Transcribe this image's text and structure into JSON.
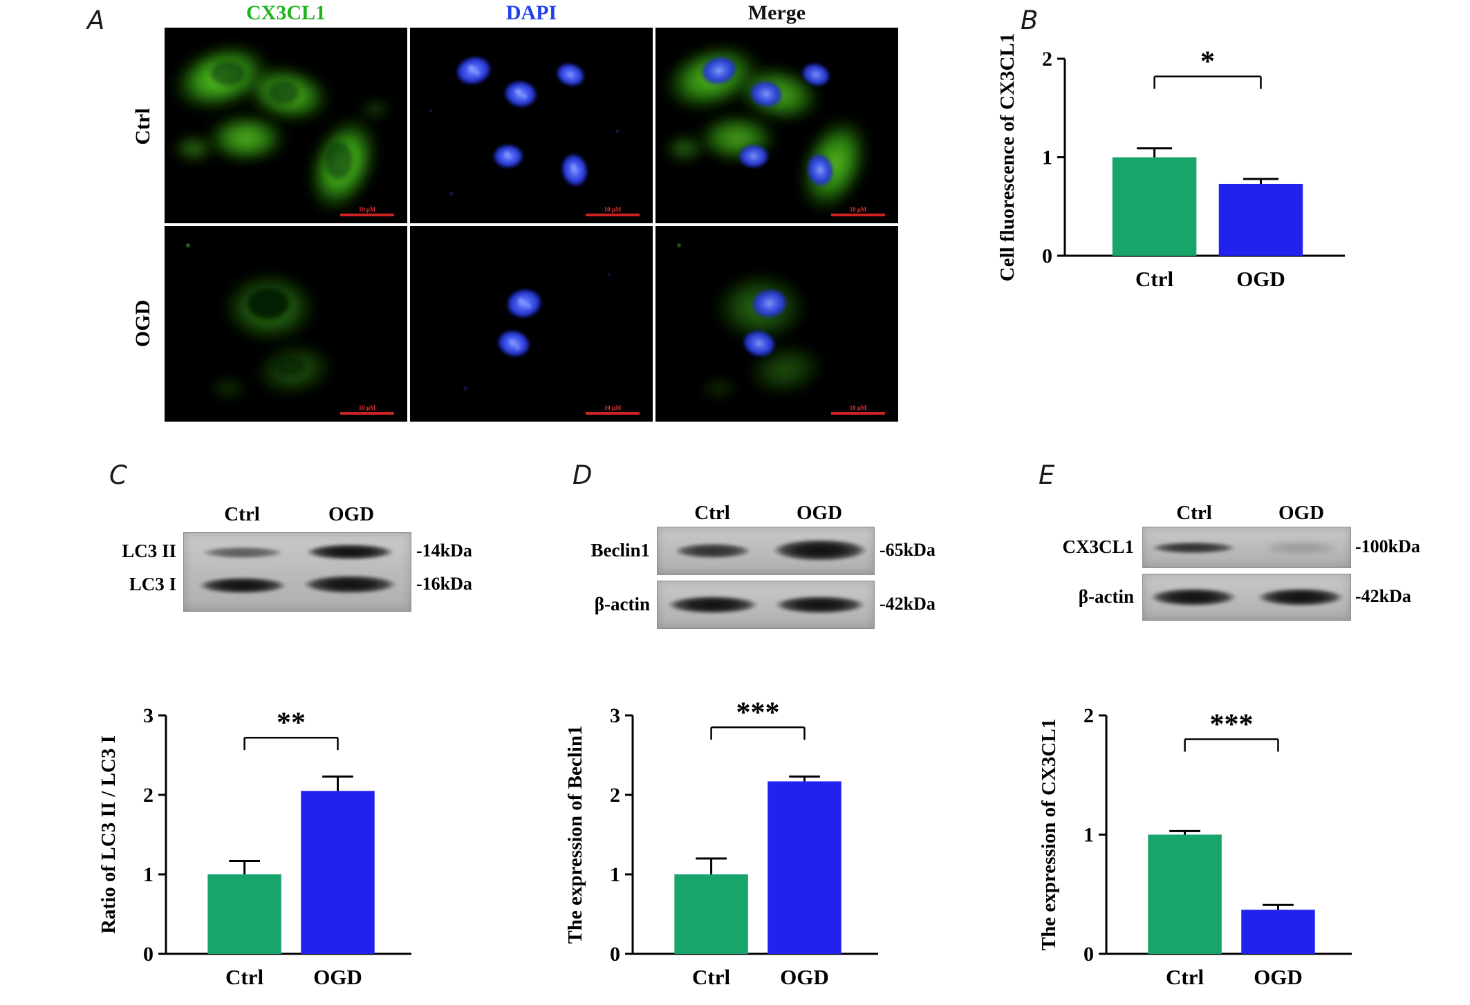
{
  "panelA": {
    "label": "A",
    "column_headers": [
      {
        "label": "CX3CL1",
        "color": "#1db41d"
      },
      {
        "label": "DAPI",
        "color": "#2240f0"
      },
      {
        "label": "Merge",
        "color": "#111111"
      }
    ],
    "row_labels": [
      "Ctrl",
      "OGD"
    ],
    "scalebar_label": "10 μM"
  },
  "panelB": {
    "label": "B"
  },
  "panelC": {
    "label": "C",
    "blot": {
      "lane_headers": [
        "Ctrl",
        "OGD"
      ],
      "rows": [
        {
          "protein": "LC3 II",
          "size": "-14kDa"
        },
        {
          "protein": "LC3 I",
          "size": "-16kDa"
        }
      ]
    }
  },
  "panelD": {
    "label": "D",
    "blot": {
      "lane_headers": [
        "Ctrl",
        "OGD"
      ],
      "rows": [
        {
          "protein": "Beclin1",
          "size": "-65kDa"
        },
        {
          "protein": "β-actin",
          "size": "-42kDa"
        }
      ]
    }
  },
  "panelE": {
    "label": "E",
    "blot": {
      "lane_headers": [
        "Ctrl",
        "OGD"
      ],
      "rows": [
        {
          "protein": "CX3CL1",
          "size": "-100kDa"
        },
        {
          "protein": "β-actin",
          "size": "-42kDa"
        }
      ]
    }
  },
  "chart_data": [
    {
      "id": "B",
      "type": "bar",
      "categories": [
        "Ctrl",
        "OGD"
      ],
      "values": [
        1.0,
        0.73
      ],
      "errors": [
        0.09,
        0.05
      ],
      "bar_colors": [
        "#18a56b",
        "#2222ee"
      ],
      "title": "",
      "xlabel": "",
      "ylabel": "Cell fluorescence of CX3CL1",
      "ylim": [
        0,
        2
      ],
      "yticks": [
        0,
        1,
        2
      ],
      "significance": "*",
      "sig_y": 1.82,
      "legend": "none",
      "grid": false
    },
    {
      "id": "C",
      "type": "bar",
      "categories": [
        "Ctrl",
        "OGD"
      ],
      "values": [
        1.0,
        2.05
      ],
      "errors": [
        0.17,
        0.18
      ],
      "bar_colors": [
        "#18a56b",
        "#2222ee"
      ],
      "title": "",
      "xlabel": "",
      "ylabel": "Ratio of LC3 II / LC3 I",
      "ylim": [
        0,
        3
      ],
      "yticks": [
        0,
        1,
        2,
        3
      ],
      "significance": "**",
      "sig_y": 2.72,
      "legend": "none",
      "grid": false
    },
    {
      "id": "D",
      "type": "bar",
      "categories": [
        "Ctrl",
        "OGD"
      ],
      "values": [
        1.0,
        2.17
      ],
      "errors": [
        0.2,
        0.06
      ],
      "bar_colors": [
        "#18a56b",
        "#2222ee"
      ],
      "title": "",
      "xlabel": "",
      "ylabel": "The expression of Beclin1",
      "ylim": [
        0,
        3
      ],
      "yticks": [
        0,
        1,
        2,
        3
      ],
      "significance": "***",
      "sig_y": 2.85,
      "legend": "none",
      "grid": false
    },
    {
      "id": "E",
      "type": "bar",
      "categories": [
        "Ctrl",
        "OGD"
      ],
      "values": [
        1.0,
        0.37
      ],
      "errors": [
        0.03,
        0.04
      ],
      "bar_colors": [
        "#18a56b",
        "#2222ee"
      ],
      "title": "",
      "xlabel": "",
      "ylabel": "The expression of CX3CL1",
      "ylim": [
        0,
        2
      ],
      "yticks": [
        0,
        1,
        2
      ],
      "significance": "***",
      "sig_y": 1.8,
      "legend": "none",
      "grid": false
    }
  ]
}
